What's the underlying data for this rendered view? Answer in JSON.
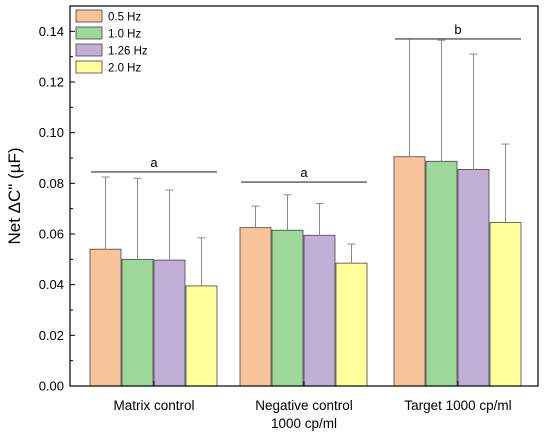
{
  "chart_data": {
    "type": "bar",
    "title": "",
    "xlabel": "",
    "ylabel": "Net ΔC\" (µF)",
    "ylim": [
      0,
      0.15
    ],
    "yticks": [
      "0.00",
      "0.02",
      "0.04",
      "0.06",
      "0.08",
      "0.10",
      "0.12",
      "0.14"
    ],
    "categories": [
      [
        "Matrix control"
      ],
      [
        "Negative control",
        "1000 cp/ml"
      ],
      [
        "Target 1000 cp/ml"
      ]
    ],
    "series": [
      {
        "name": "0.5 Hz",
        "color": "#F9C49A",
        "values": [
          0.054,
          0.0625,
          0.0905
        ],
        "errors": [
          0.0285,
          0.0085,
          0.0465
        ]
      },
      {
        "name": "1.0 Hz",
        "color": "#9ED79A",
        "values": [
          0.05,
          0.0615,
          0.0887
        ],
        "errors": [
          0.032,
          0.014,
          0.0478
        ]
      },
      {
        "name": "1.26 Hz",
        "color": "#C2AFD6",
        "values": [
          0.0497,
          0.0595,
          0.0855
        ],
        "errors": [
          0.0277,
          0.0125,
          0.0455
        ]
      },
      {
        "name": "2.0 Hz",
        "color": "#FFFF99",
        "values": [
          0.0395,
          0.0485,
          0.0645
        ],
        "errors": [
          0.019,
          0.0075,
          0.031
        ]
      }
    ],
    "significance": [
      {
        "label": "a",
        "category": 0,
        "y": 0.0845
      },
      {
        "label": "a",
        "category": 1,
        "y": 0.0805
      },
      {
        "label": "b",
        "category": 2,
        "y": 0.137
      }
    ],
    "legend_position": "top-left",
    "grid": false
  }
}
